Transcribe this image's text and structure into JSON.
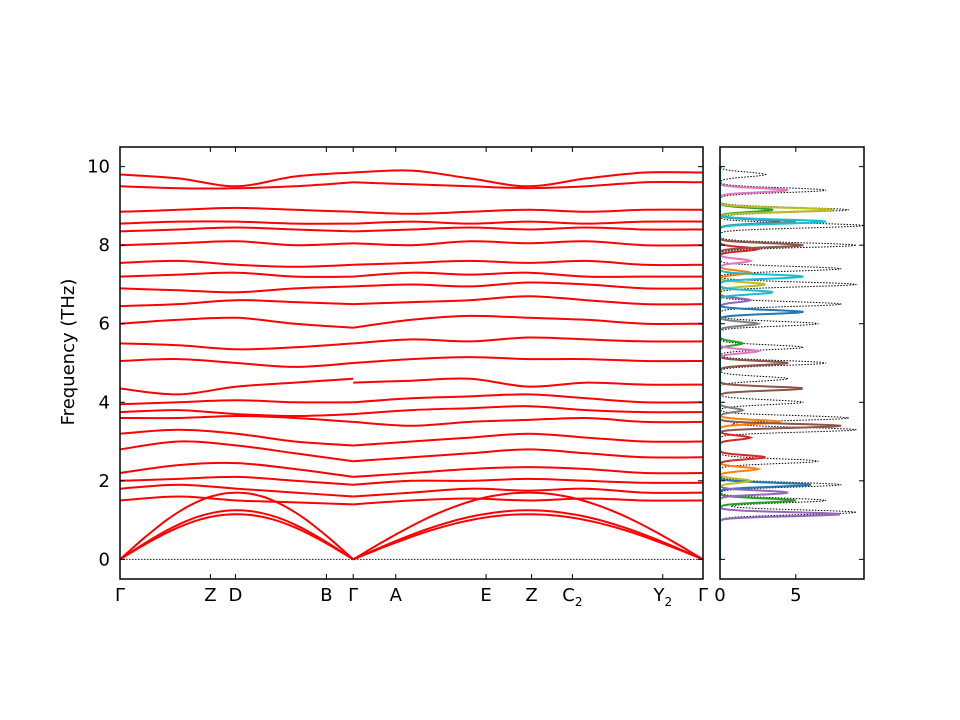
{
  "chart_data": [
    {
      "type": "line",
      "panel": "phonon band structure",
      "title": "",
      "ylabel": "Frequency (THz)",
      "ylim": [
        -0.5,
        10.5
      ],
      "yticks": [
        0,
        2,
        4,
        6,
        8,
        10
      ],
      "grid": false,
      "legend": "none",
      "colors": {
        "bands": "#ff0000",
        "zero_line": "#0000ff"
      },
      "segment_boundaries": [
        0.0,
        0.4,
        1.0
      ],
      "x_ticks": [
        {
          "label": "Γ",
          "sub": "",
          "x": 0.0
        },
        {
          "label": "Z",
          "sub": "",
          "x": 0.155
        },
        {
          "label": "D",
          "sub": "",
          "x": 0.198
        },
        {
          "label": "B",
          "sub": "",
          "x": 0.354
        },
        {
          "label": "Γ",
          "sub": "",
          "x": 0.4
        },
        {
          "label": "A",
          "sub": "",
          "x": 0.473
        },
        {
          "label": "E",
          "sub": "",
          "x": 0.628
        },
        {
          "label": "Z",
          "sub": "",
          "x": 0.706
        },
        {
          "label": "C",
          "sub": "2",
          "x": 0.776
        },
        {
          "label": "Y",
          "sub": "2",
          "x": 0.931
        },
        {
          "label": "Γ",
          "sub": "",
          "x": 1.0
        }
      ],
      "acoustic_peaks": [
        1.15,
        1.25,
        1.7
      ],
      "bands": [
        {
          "left": [
            1.5,
            1.6,
            1.5,
            1.45,
            1.4
          ],
          "right": [
            1.4,
            1.5,
            1.55,
            1.5,
            1.55,
            1.5,
            1.5
          ]
        },
        {
          "left": [
            1.8,
            1.9,
            1.8,
            1.7,
            1.6
          ],
          "right": [
            1.6,
            1.7,
            1.8,
            1.75,
            1.8,
            1.7,
            1.7
          ]
        },
        {
          "left": [
            2.0,
            2.05,
            2.1,
            2.0,
            1.9
          ],
          "right": [
            1.9,
            2.0,
            2.0,
            2.05,
            2.0,
            1.95,
            1.95
          ]
        },
        {
          "left": [
            2.2,
            2.4,
            2.45,
            2.3,
            2.1
          ],
          "right": [
            2.1,
            2.2,
            2.3,
            2.35,
            2.3,
            2.2,
            2.2
          ]
        },
        {
          "left": [
            2.8,
            3.0,
            2.9,
            2.7,
            2.5
          ],
          "right": [
            2.5,
            2.6,
            2.7,
            2.8,
            2.7,
            2.6,
            2.6
          ]
        },
        {
          "left": [
            3.2,
            3.3,
            3.2,
            3.0,
            2.9
          ],
          "right": [
            2.9,
            3.0,
            3.1,
            3.2,
            3.1,
            3.0,
            3.0
          ]
        },
        {
          "left": [
            3.6,
            3.6,
            3.65,
            3.6,
            3.5
          ],
          "right": [
            3.5,
            3.4,
            3.5,
            3.55,
            3.6,
            3.5,
            3.5
          ]
        },
        {
          "left": [
            3.75,
            3.8,
            3.7,
            3.65,
            3.7
          ],
          "right": [
            3.7,
            3.8,
            3.85,
            3.9,
            3.8,
            3.75,
            3.75
          ]
        },
        {
          "left": [
            3.95,
            4.0,
            4.05,
            4.0,
            4.0
          ],
          "right": [
            4.0,
            4.1,
            4.15,
            4.2,
            4.1,
            4.0,
            4.0
          ]
        },
        {
          "left": [
            4.35,
            4.2,
            4.4,
            4.5,
            4.6
          ],
          "right": [
            4.5,
            4.55,
            4.6,
            4.4,
            4.5,
            4.45,
            4.45
          ]
        },
        {
          "left": [
            5.05,
            5.1,
            5.0,
            4.9,
            5.0
          ],
          "right": [
            5.0,
            5.1,
            5.15,
            5.1,
            5.1,
            5.05,
            5.05
          ]
        },
        {
          "left": [
            5.5,
            5.45,
            5.35,
            5.4,
            5.5
          ],
          "right": [
            5.5,
            5.6,
            5.55,
            5.65,
            5.6,
            5.55,
            5.55
          ]
        },
        {
          "left": [
            6.0,
            6.1,
            6.15,
            6.0,
            5.9
          ],
          "right": [
            5.9,
            6.1,
            6.2,
            6.15,
            6.1,
            6.0,
            6.0
          ]
        },
        {
          "left": [
            6.45,
            6.5,
            6.6,
            6.55,
            6.5
          ],
          "right": [
            6.5,
            6.55,
            6.6,
            6.7,
            6.6,
            6.5,
            6.5
          ]
        },
        {
          "left": [
            6.9,
            6.85,
            6.8,
            6.9,
            6.95
          ],
          "right": [
            6.95,
            7.0,
            6.95,
            7.05,
            7.0,
            6.9,
            6.9
          ]
        },
        {
          "left": [
            7.2,
            7.25,
            7.3,
            7.2,
            7.2
          ],
          "right": [
            7.2,
            7.3,
            7.25,
            7.3,
            7.2,
            7.2,
            7.2
          ]
        },
        {
          "left": [
            7.55,
            7.6,
            7.5,
            7.45,
            7.5
          ],
          "right": [
            7.5,
            7.55,
            7.6,
            7.55,
            7.6,
            7.5,
            7.5
          ]
        },
        {
          "left": [
            8.0,
            8.05,
            8.1,
            8.0,
            8.05
          ],
          "right": [
            8.05,
            8.0,
            8.1,
            8.05,
            8.1,
            8.0,
            8.0
          ]
        },
        {
          "left": [
            8.35,
            8.4,
            8.45,
            8.4,
            8.35
          ],
          "right": [
            8.35,
            8.4,
            8.45,
            8.4,
            8.45,
            8.4,
            8.4
          ]
        },
        {
          "left": [
            8.55,
            8.6,
            8.6,
            8.55,
            8.55
          ],
          "right": [
            8.55,
            8.6,
            8.55,
            8.6,
            8.55,
            8.6,
            8.6
          ]
        },
        {
          "left": [
            8.85,
            8.9,
            8.95,
            8.9,
            8.85
          ],
          "right": [
            8.85,
            8.8,
            8.85,
            8.9,
            8.85,
            8.9,
            8.9
          ]
        },
        {
          "left": [
            9.5,
            9.45,
            9.45,
            9.5,
            9.6
          ],
          "right": [
            9.6,
            9.55,
            9.5,
            9.45,
            9.5,
            9.6,
            9.6
          ]
        },
        {
          "left": [
            9.8,
            9.7,
            9.5,
            9.75,
            9.85
          ],
          "right": [
            9.85,
            9.9,
            9.7,
            9.5,
            9.7,
            9.85,
            9.85
          ]
        }
      ]
    },
    {
      "type": "line",
      "panel": "density of states",
      "title": "",
      "xlabel": "",
      "xlim": [
        0,
        9.5
      ],
      "xticks": [
        0,
        5
      ],
      "ylim": [
        -0.5,
        10.5
      ],
      "grid": false,
      "legend": "none",
      "total_color": "#000000",
      "total_style": "dotted",
      "total_peaks": [
        [
          1.2,
          9.0
        ],
        [
          1.5,
          7.0
        ],
        [
          1.9,
          8.0
        ],
        [
          2.5,
          6.5
        ],
        [
          3.3,
          9.0
        ],
        [
          3.6,
          8.5
        ],
        [
          4.0,
          5.5
        ],
        [
          4.6,
          4.5
        ],
        [
          5.0,
          7.0
        ],
        [
          5.4,
          5.5
        ],
        [
          6.0,
          6.5
        ],
        [
          6.5,
          8.0
        ],
        [
          7.0,
          9.0
        ],
        [
          7.4,
          8.0
        ],
        [
          8.0,
          9.0
        ],
        [
          8.5,
          9.5
        ],
        [
          8.9,
          8.5
        ],
        [
          9.4,
          7.0
        ],
        [
          9.8,
          3.0
        ]
      ],
      "partial_colors": [
        "#1f77b4",
        "#ff7f0e",
        "#2ca02c",
        "#d62728",
        "#9467bd",
        "#8c564b",
        "#e377c2",
        "#7f7f7f",
        "#bcbd22",
        "#17becf"
      ],
      "partials": [
        {
          "color": "#1f77b4",
          "peaks": [
            [
              1.9,
              6.0
            ],
            [
              6.3,
              5.5
            ],
            [
              8.6,
              4.0
            ]
          ]
        },
        {
          "color": "#ff7f0e",
          "peaks": [
            [
              3.5,
              4.0
            ],
            [
              2.3,
              2.5
            ],
            [
              7.3,
              2.0
            ]
          ]
        },
        {
          "color": "#2ca02c",
          "peaks": [
            [
              1.5,
              5.0
            ],
            [
              8.9,
              3.5
            ],
            [
              5.5,
              1.5
            ]
          ]
        },
        {
          "color": "#d62728",
          "peaks": [
            [
              2.6,
              3.0
            ],
            [
              3.1,
              2.0
            ],
            [
              7.9,
              2.5
            ]
          ]
        },
        {
          "color": "#9467bd",
          "peaks": [
            [
              1.15,
              8.0
            ],
            [
              1.7,
              4.5
            ],
            [
              6.6,
              2.0
            ]
          ]
        },
        {
          "color": "#8c564b",
          "peaks": [
            [
              3.4,
              8.0
            ],
            [
              4.35,
              5.5
            ],
            [
              5.0,
              4.5
            ],
            [
              8.0,
              5.5
            ]
          ]
        },
        {
          "color": "#e377c2",
          "peaks": [
            [
              9.4,
              4.5
            ],
            [
              7.6,
              2.0
            ],
            [
              5.3,
              2.5
            ]
          ]
        },
        {
          "color": "#7f7f7f",
          "peaks": [
            [
              8.6,
              5.0
            ],
            [
              6.0,
              2.5
            ],
            [
              3.8,
              1.5
            ]
          ]
        },
        {
          "color": "#bcbd22",
          "peaks": [
            [
              8.9,
              7.5
            ],
            [
              7.0,
              3.0
            ],
            [
              2.0,
              2.0
            ]
          ]
        },
        {
          "color": "#17becf",
          "peaks": [
            [
              8.6,
              7.0
            ],
            [
              7.2,
              5.5
            ],
            [
              6.8,
              3.5
            ]
          ]
        }
      ]
    }
  ]
}
